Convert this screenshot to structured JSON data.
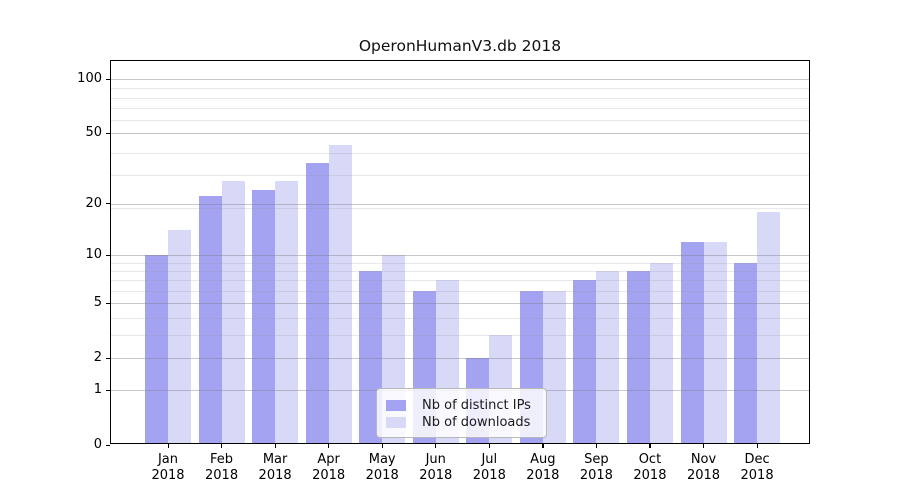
{
  "chart_data": {
    "type": "bar",
    "title": "OperonHumanV3.db 2018",
    "categories": [
      "Jan",
      "Feb",
      "Mar",
      "Apr",
      "May",
      "Jun",
      "Jul",
      "Aug",
      "Sep",
      "Oct",
      "Nov",
      "Dec"
    ],
    "year_label": "2018",
    "series": [
      {
        "name": "Nb of distinct IPs",
        "color": "#a3a3f1",
        "values": [
          10,
          22,
          24,
          34,
          8,
          6,
          2,
          6,
          7,
          8,
          12,
          9
        ]
      },
      {
        "name": "Nb of downloads",
        "color": "#d8d8f7",
        "values": [
          14,
          27,
          27,
          43,
          10,
          7,
          3,
          6,
          8,
          9,
          12,
          18
        ]
      }
    ],
    "y_axis": {
      "scale": "log(value+1)",
      "tick_values": [
        0,
        1,
        2,
        5,
        10,
        20,
        50,
        100
      ],
      "tick_labels": [
        "0",
        "1",
        "2",
        "5",
        "10",
        "20",
        "50",
        "100"
      ]
    },
    "legend": {
      "entries": [
        "Nb of distinct IPs",
        "Nb of downloads"
      ],
      "position": "lower-center-inside"
    },
    "grid": true
  }
}
